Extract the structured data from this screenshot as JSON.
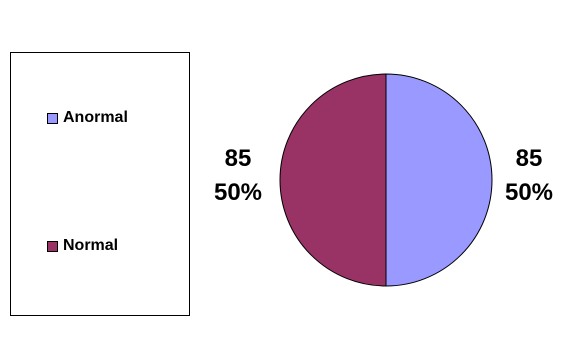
{
  "chart_data": {
    "type": "pie",
    "categories": [
      "Anormal",
      "Normal"
    ],
    "values": [
      85,
      85
    ],
    "percentages": [
      "50%",
      "50%"
    ],
    "colors": {
      "Anormal": "#9999ff",
      "Normal": "#993366",
      "outline": "#000000"
    },
    "legend_position": "left",
    "data_labels": [
      {
        "category": "Anormal",
        "value": "85",
        "percent": "50%"
      },
      {
        "category": "Normal",
        "value": "85",
        "percent": "50%"
      }
    ],
    "title": "",
    "xlabel": "",
    "ylabel": ""
  }
}
